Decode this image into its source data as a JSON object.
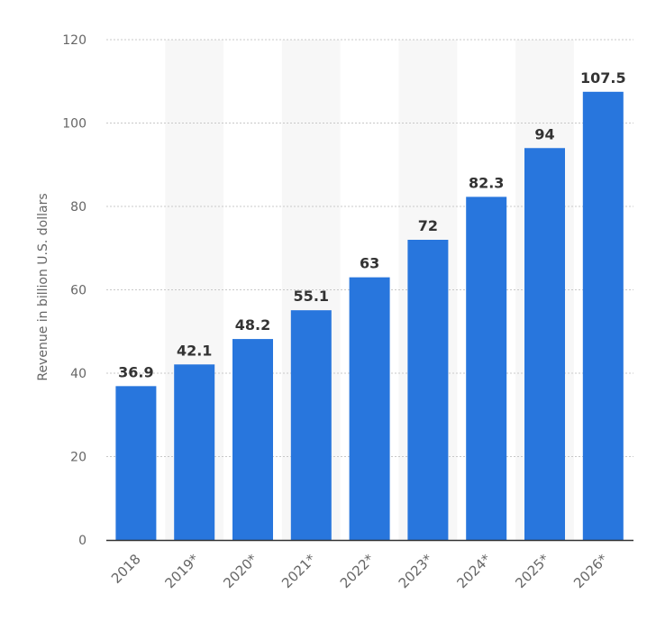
{
  "chart_data": {
    "type": "bar",
    "categories": [
      "2018",
      "2019*",
      "2020*",
      "2021*",
      "2022*",
      "2023*",
      "2024*",
      "2025*",
      "2026*"
    ],
    "values": [
      36.9,
      42.1,
      48.2,
      55.1,
      63,
      72,
      82.3,
      94,
      107.5
    ],
    "value_labels": [
      "36.9",
      "42.1",
      "48.2",
      "55.1",
      "63",
      "72",
      "82.3",
      "94",
      "107.5"
    ],
    "ylabel": "Revenue in billion U.S. dollars",
    "xlabel": "",
    "ylim": [
      0,
      120
    ],
    "yticks": [
      0,
      20,
      40,
      60,
      80,
      100,
      120
    ],
    "grid": true,
    "grid_style": "dotted horizontal",
    "alternating_column_shading": true,
    "colors": {
      "bar": "#2876dd",
      "band": "#f7f7f7",
      "grid": "#c8c8c8",
      "axis": "#333333",
      "tick_text": "#666666",
      "label_text": "#333333"
    }
  }
}
